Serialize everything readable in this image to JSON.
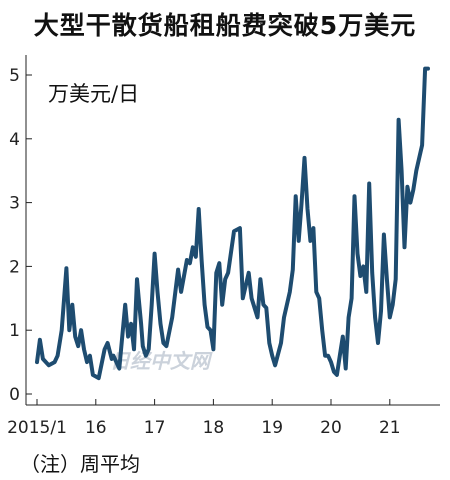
{
  "title": "大型干散货船租船费突破5万美元",
  "footnote": "（注）周平均",
  "watermark": "日经中文网",
  "colors": {
    "line": "#1e4c70",
    "axis": "#222222",
    "text": "#111111"
  },
  "chart_data": {
    "type": "line",
    "title": "大型干散货船租船费突破5万美元",
    "ylabel": "万美元/日",
    "xlabel": "",
    "ylim": [
      0,
      5.4
    ],
    "yticks": [
      0,
      1,
      2,
      3,
      4,
      5
    ],
    "xlim": [
      2014.9,
      2021.85
    ],
    "xticks": [
      {
        "value": 2015.0,
        "label": "2015/1"
      },
      {
        "value": 2016.0,
        "label": "16"
      },
      {
        "value": 2017.0,
        "label": "17"
      },
      {
        "value": 2018.0,
        "label": "18"
      },
      {
        "value": 2019.0,
        "label": "19"
      },
      {
        "value": 2020.0,
        "label": "20"
      },
      {
        "value": 2021.0,
        "label": "21"
      }
    ],
    "grid": false,
    "legend": "none",
    "note": "（注）周平均",
    "series": [
      {
        "name": "",
        "x": [
          2015.0,
          2015.05,
          2015.1,
          2015.2,
          2015.3,
          2015.35,
          2015.42,
          2015.5,
          2015.55,
          2015.6,
          2015.65,
          2015.7,
          2015.75,
          2015.8,
          2015.85,
          2015.9,
          2015.95,
          2016.05,
          2016.15,
          2016.2,
          2016.27,
          2016.3,
          2016.4,
          2016.5,
          2016.55,
          2016.6,
          2016.65,
          2016.7,
          2016.73,
          2016.77,
          2016.8,
          2016.85,
          2016.9,
          2016.95,
          2017.0,
          2017.05,
          2017.1,
          2017.15,
          2017.2,
          2017.3,
          2017.4,
          2017.45,
          2017.55,
          2017.6,
          2017.65,
          2017.7,
          2017.75,
          2017.8,
          2017.85,
          2017.9,
          2017.95,
          2018.0,
          2018.05,
          2018.1,
          2018.15,
          2018.2,
          2018.25,
          2018.35,
          2018.45,
          2018.5,
          2018.6,
          2018.65,
          2018.75,
          2018.8,
          2018.85,
          2018.9,
          2018.95,
          2019.0,
          2019.05,
          2019.15,
          2019.2,
          2019.3,
          2019.35,
          2019.4,
          2019.45,
          2019.5,
          2019.55,
          2019.6,
          2019.65,
          2019.7,
          2019.75,
          2019.8,
          2019.85,
          2019.9,
          2019.95,
          2020.0,
          2020.05,
          2020.1,
          2020.15,
          2020.2,
          2020.25,
          2020.3,
          2020.35,
          2020.4,
          2020.45,
          2020.5,
          2020.55,
          2020.6,
          2020.65,
          2020.7,
          2020.75,
          2020.8,
          2020.85,
          2020.9,
          2020.95,
          2021.0,
          2021.05,
          2021.1,
          2021.15,
          2021.2,
          2021.25,
          2021.3,
          2021.35,
          2021.4,
          2021.45,
          2021.5,
          2021.55,
          2021.6,
          2021.65
        ],
        "values": [
          0.5,
          0.85,
          0.55,
          0.45,
          0.5,
          0.6,
          1.0,
          1.97,
          1.0,
          1.4,
          0.9,
          0.75,
          1.0,
          0.7,
          0.5,
          0.6,
          0.3,
          0.25,
          0.7,
          0.8,
          0.55,
          0.6,
          0.4,
          1.4,
          0.9,
          1.1,
          0.7,
          1.8,
          1.5,
          1.1,
          0.75,
          0.6,
          0.7,
          1.4,
          2.2,
          1.6,
          1.1,
          0.8,
          0.75,
          1.2,
          1.95,
          1.6,
          2.1,
          2.05,
          2.3,
          2.15,
          2.9,
          2.1,
          1.4,
          1.05,
          1.0,
          0.7,
          1.9,
          2.05,
          1.4,
          1.8,
          1.9,
          2.55,
          2.6,
          1.5,
          1.9,
          1.5,
          1.2,
          1.8,
          1.4,
          1.35,
          0.8,
          0.6,
          0.45,
          0.8,
          1.2,
          1.6,
          1.95,
          3.1,
          2.4,
          3.0,
          3.7,
          2.9,
          2.4,
          2.6,
          1.6,
          1.5,
          1.0,
          0.6,
          0.6,
          0.5,
          0.35,
          0.3,
          0.6,
          0.9,
          0.4,
          1.2,
          1.5,
          3.1,
          2.2,
          1.85,
          2.0,
          1.6,
          3.3,
          1.9,
          1.2,
          0.8,
          1.3,
          2.5,
          1.8,
          1.2,
          1.4,
          1.8,
          4.3,
          3.5,
          2.3,
          3.25,
          3.0,
          3.2,
          3.5,
          3.7,
          3.9,
          5.1,
          5.1
        ]
      }
    ]
  }
}
